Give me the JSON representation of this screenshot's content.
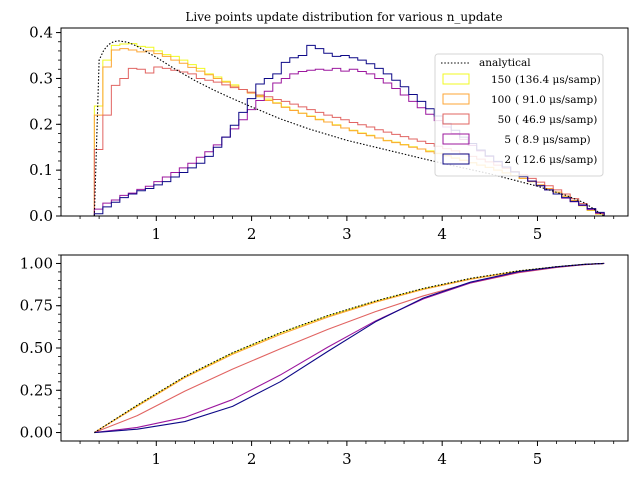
{
  "chart_data": [
    {
      "type": "histogram-step",
      "title": "Live points update distribution for various n_update",
      "xlabel": "",
      "ylabel": "",
      "xlim": [
        0.0,
        5.95
      ],
      "ylim": [
        0.0,
        0.41
      ],
      "xticks": [
        1,
        2,
        3,
        4,
        5
      ],
      "xticklabels": [
        "1",
        "2",
        "3",
        "4",
        "5"
      ],
      "yticks": [
        0.0,
        0.1,
        0.2,
        0.3,
        0.4
      ],
      "yticklabels": [
        "0.0",
        "0.1",
        "0.2",
        "0.3",
        "0.4"
      ],
      "grid": false,
      "legend_position": "center-right",
      "bin_range": [
        0.35,
        5.7
      ],
      "analytical": {
        "label": "analytical",
        "color": "#000000",
        "style": "dotted",
        "x": [
          0.35,
          0.4,
          0.45,
          0.5,
          0.55,
          0.6,
          0.7,
          0.8,
          0.9,
          1.0,
          1.2,
          1.4,
          1.6,
          1.8,
          2.0,
          2.3,
          2.6,
          3.0,
          3.5,
          4.0,
          4.5,
          5.0,
          5.3,
          5.5,
          5.7
        ],
        "y": [
          0.0,
          0.34,
          0.362,
          0.374,
          0.38,
          0.382,
          0.379,
          0.37,
          0.358,
          0.346,
          0.32,
          0.296,
          0.275,
          0.256,
          0.238,
          0.212,
          0.19,
          0.165,
          0.14,
          0.115,
          0.092,
          0.065,
          0.045,
          0.028,
          0.0
        ]
      },
      "series": [
        {
          "name": "150",
          "timing": "(136.4 μs/samp)",
          "color": "#f0f921",
          "values": [
            0.24,
            0.34,
            0.372,
            0.375,
            0.376,
            0.37,
            0.368,
            0.36,
            0.352,
            0.348,
            0.34,
            0.33,
            0.322,
            0.31,
            0.303,
            0.294,
            0.286,
            0.276,
            0.27,
            0.262,
            0.255,
            0.247,
            0.238,
            0.231,
            0.224,
            0.218,
            0.211,
            0.205,
            0.199,
            0.192,
            0.187,
            0.181,
            0.176,
            0.17,
            0.165,
            0.161,
            0.156,
            0.151,
            0.146,
            0.142,
            0.137,
            0.132,
            0.127,
            0.122,
            0.116,
            0.111,
            0.106,
            0.1,
            0.094,
            0.088,
            0.082,
            0.075,
            0.068,
            0.06,
            0.052,
            0.043,
            0.033,
            0.022,
            0.012,
            0.004
          ],
          "cdf_x": [
            0.35,
            0.8,
            1.3,
            1.8,
            2.3,
            2.8,
            3.3,
            3.8,
            4.3,
            4.8,
            5.2,
            5.5,
            5.7
          ],
          "cdf_y": [
            0.0,
            0.16,
            0.33,
            0.47,
            0.588,
            0.69,
            0.776,
            0.85,
            0.91,
            0.955,
            0.98,
            0.995,
            1.0
          ]
        },
        {
          "name": "100",
          "timing": "( 91.0 μs/samp)",
          "color": "#fca636",
          "values": [
            0.22,
            0.325,
            0.362,
            0.365,
            0.362,
            0.358,
            0.36,
            0.354,
            0.348,
            0.34,
            0.333,
            0.324,
            0.316,
            0.308,
            0.3,
            0.292,
            0.283,
            0.276,
            0.268,
            0.26,
            0.252,
            0.246,
            0.237,
            0.23,
            0.224,
            0.217,
            0.21,
            0.205,
            0.198,
            0.192,
            0.186,
            0.18,
            0.175,
            0.17,
            0.164,
            0.16,
            0.155,
            0.15,
            0.146,
            0.14,
            0.136,
            0.131,
            0.126,
            0.121,
            0.116,
            0.111,
            0.106,
            0.1,
            0.094,
            0.088,
            0.082,
            0.075,
            0.068,
            0.06,
            0.052,
            0.043,
            0.034,
            0.024,
            0.013,
            0.005
          ],
          "cdf_x": [
            0.35,
            0.8,
            1.3,
            1.8,
            2.3,
            2.8,
            3.3,
            3.8,
            4.3,
            4.8,
            5.2,
            5.5,
            5.7
          ],
          "cdf_y": [
            0.0,
            0.155,
            0.325,
            0.463,
            0.58,
            0.683,
            0.771,
            0.846,
            0.907,
            0.953,
            0.979,
            0.994,
            1.0
          ]
        },
        {
          "name": "50",
          "timing": "( 46.9 μs/samp)",
          "color": "#e16462",
          "values": [
            0.145,
            0.22,
            0.285,
            0.3,
            0.322,
            0.32,
            0.312,
            0.325,
            0.322,
            0.318,
            0.314,
            0.31,
            0.3,
            0.296,
            0.292,
            0.286,
            0.28,
            0.276,
            0.27,
            0.264,
            0.26,
            0.254,
            0.25,
            0.244,
            0.238,
            0.232,
            0.226,
            0.22,
            0.215,
            0.21,
            0.204,
            0.199,
            0.194,
            0.188,
            0.183,
            0.178,
            0.173,
            0.168,
            0.163,
            0.158,
            0.152,
            0.147,
            0.142,
            0.136,
            0.13,
            0.124,
            0.118,
            0.111,
            0.104,
            0.097,
            0.09,
            0.082,
            0.074,
            0.066,
            0.057,
            0.048,
            0.038,
            0.027,
            0.016,
            0.006
          ],
          "cdf_x": [
            0.35,
            0.8,
            1.3,
            1.8,
            2.3,
            2.8,
            3.3,
            3.8,
            4.3,
            4.8,
            5.2,
            5.5,
            5.7
          ],
          "cdf_y": [
            0.0,
            0.1,
            0.245,
            0.375,
            0.495,
            0.61,
            0.715,
            0.808,
            0.885,
            0.945,
            0.976,
            0.993,
            1.0
          ]
        },
        {
          "name": "5",
          "timing": "(  8.9 μs/samp)",
          "color": "#9c179e",
          "values": [
            0.015,
            0.028,
            0.035,
            0.045,
            0.05,
            0.058,
            0.065,
            0.075,
            0.085,
            0.095,
            0.105,
            0.115,
            0.128,
            0.14,
            0.155,
            0.172,
            0.19,
            0.21,
            0.232,
            0.252,
            0.272,
            0.29,
            0.3,
            0.31,
            0.315,
            0.318,
            0.32,
            0.318,
            0.322,
            0.316,
            0.32,
            0.315,
            0.31,
            0.3,
            0.29,
            0.278,
            0.264,
            0.25,
            0.236,
            0.222,
            0.208,
            0.194,
            0.18,
            0.167,
            0.154,
            0.142,
            0.13,
            0.118,
            0.107,
            0.096,
            0.086,
            0.076,
            0.066,
            0.057,
            0.048,
            0.039,
            0.031,
            0.023,
            0.014,
            0.006
          ],
          "cdf_x": [
            0.35,
            0.8,
            1.3,
            1.8,
            2.3,
            2.8,
            3.3,
            3.8,
            4.3,
            4.8,
            5.2,
            5.5,
            5.7
          ],
          "cdf_y": [
            0.0,
            0.03,
            0.09,
            0.195,
            0.34,
            0.505,
            0.66,
            0.79,
            0.885,
            0.948,
            0.978,
            0.994,
            1.0
          ]
        },
        {
          "name": "2",
          "timing": "( 12.6 μs/samp)",
          "color": "#0d0887",
          "values": [
            0.005,
            0.02,
            0.03,
            0.04,
            0.048,
            0.055,
            0.06,
            0.068,
            0.075,
            0.085,
            0.095,
            0.105,
            0.115,
            0.13,
            0.15,
            0.172,
            0.198,
            0.226,
            0.256,
            0.288,
            0.3,
            0.31,
            0.335,
            0.345,
            0.35,
            0.372,
            0.365,
            0.355,
            0.348,
            0.35,
            0.345,
            0.34,
            0.332,
            0.322,
            0.31,
            0.296,
            0.282,
            0.265,
            0.25,
            0.234,
            0.218,
            0.202,
            0.187,
            0.172,
            0.158,
            0.144,
            0.131,
            0.119,
            0.107,
            0.096,
            0.086,
            0.076,
            0.066,
            0.057,
            0.048,
            0.04,
            0.032,
            0.024,
            0.016,
            0.008
          ],
          "cdf_x": [
            0.35,
            0.8,
            1.3,
            1.8,
            2.3,
            2.8,
            3.3,
            3.8,
            4.3,
            4.8,
            5.2,
            5.5,
            5.7
          ],
          "cdf_y": [
            0.0,
            0.02,
            0.065,
            0.155,
            0.3,
            0.48,
            0.655,
            0.795,
            0.89,
            0.952,
            0.98,
            0.995,
            1.0
          ]
        }
      ]
    },
    {
      "type": "line",
      "title": "",
      "xlabel": "",
      "ylabel": "",
      "xlim": [
        0.0,
        5.95
      ],
      "ylim": [
        -0.05,
        1.05
      ],
      "xticks": [
        1,
        2,
        3,
        4,
        5
      ],
      "xticklabels": [
        "1",
        "2",
        "3",
        "4",
        "5"
      ],
      "yticks": [
        0.0,
        0.25,
        0.5,
        0.75,
        1.0
      ],
      "yticklabels": [
        "0.00",
        "0.25",
        "0.50",
        "0.75",
        "1.00"
      ],
      "grid": false,
      "content": "cumulative distributions of the same series as the top panel",
      "analytical_cdf": {
        "x": [
          0.35,
          0.8,
          1.3,
          1.8,
          2.3,
          2.8,
          3.3,
          3.8,
          4.3,
          4.8,
          5.2,
          5.5,
          5.7
        ],
        "y": [
          0.0,
          0.162,
          0.332,
          0.472,
          0.59,
          0.692,
          0.778,
          0.852,
          0.912,
          0.956,
          0.981,
          0.995,
          1.0
        ]
      }
    }
  ]
}
